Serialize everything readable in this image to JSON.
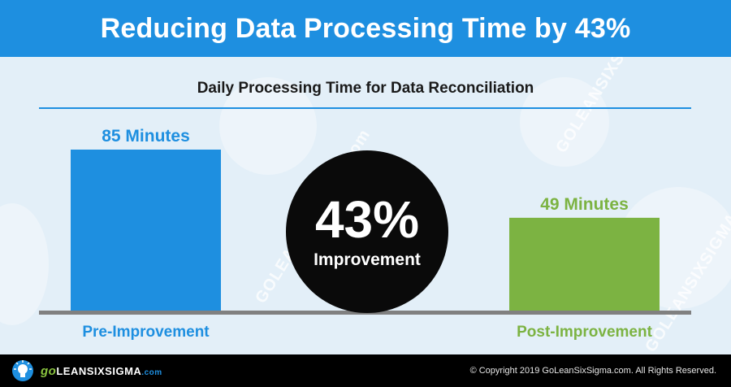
{
  "header": {
    "title": "Reducing Data Processing Time by 43%"
  },
  "subtitle": "Daily Processing Time for Data Reconciliation",
  "chart_data": {
    "type": "bar",
    "categories": [
      "Pre-Improvement",
      "Post-Improvement"
    ],
    "values": [
      85,
      49
    ],
    "value_labels": [
      "85 Minutes",
      "49 Minutes"
    ],
    "colors": [
      "#1e8fe0",
      "#7cb342"
    ],
    "ylim": [
      0,
      85
    ],
    "grid": false,
    "title": "Daily Processing Time for Data Reconciliation"
  },
  "callout": {
    "value": "43%",
    "label": "Improvement"
  },
  "watermark": "GOLEANSIXSIGMA.com",
  "footer": {
    "brand_go": "go",
    "brand_name": "LEANSIXSIGMA",
    "brand_suffix": ".com",
    "copyright": "© Copyright 2019 GoLeanSixSigma.com. All Rights Reserved."
  },
  "colors": {
    "header_bg": "#1e8fe0",
    "background": "#e3eff8",
    "baseline": "#808080",
    "circle": "#0a0a0a"
  },
  "icons": [
    "lightbulb-icon"
  ]
}
